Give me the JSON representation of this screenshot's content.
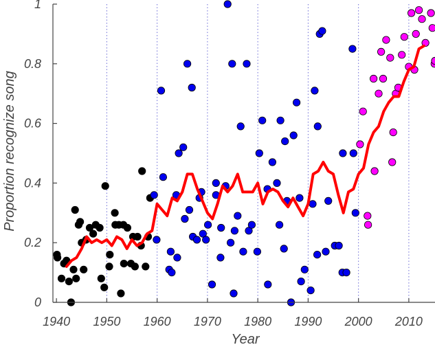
{
  "chart_data": {
    "type": "scatter",
    "title": "",
    "xlabel": "Year",
    "ylabel": "Proportion recognize song",
    "xlim": [
      1939.3,
      2015.2
    ],
    "ylim": [
      0,
      1
    ],
    "xticks": [
      "1940",
      "1950",
      "1960",
      "1970",
      "1980",
      "1990",
      "2000",
      "2010"
    ],
    "yticks": [
      "0",
      "0.2",
      "0.4",
      "0.6",
      "0.8",
      "1"
    ],
    "vertical_gridlines": [
      1950,
      1960,
      1970,
      1980,
      1990,
      2000,
      2010
    ],
    "colors": {
      "series_1940s_pre1960": "#000000",
      "series_1960_1999": "#0000ee",
      "series_2000_plus": "#ff00ff",
      "trend_line": "#ff0000",
      "gridline": "#6b6bd6",
      "axis": "#444444"
    },
    "series": [
      {
        "color_key": "series_1940s_pre1960",
        "points": [
          [
            1940.1,
            0.16
          ],
          [
            1940.2,
            0.15
          ],
          [
            1941.0,
            0.08
          ],
          [
            1941.5,
            0.13
          ],
          [
            1942.0,
            0.14
          ],
          [
            1942.5,
            0.07
          ],
          [
            1942.9,
            0.0
          ],
          [
            1943.4,
            0.11
          ],
          [
            1943.7,
            0.31
          ],
          [
            1943.9,
            0.08
          ],
          [
            1944.4,
            0.26
          ],
          [
            1944.7,
            0.27
          ],
          [
            1945.0,
            0.2
          ],
          [
            1945.4,
            0.11
          ],
          [
            1945.9,
            0.21
          ],
          [
            1946.6,
            0.25
          ],
          [
            1947.3,
            0.23
          ],
          [
            1947.8,
            0.26
          ],
          [
            1948.6,
            0.25
          ],
          [
            1948.9,
            0.08
          ],
          [
            1949.5,
            0.05
          ],
          [
            1949.7,
            0.39
          ],
          [
            1950.5,
            0.12
          ],
          [
            1950.6,
            0.16
          ],
          [
            1951.6,
            0.3
          ],
          [
            1951.7,
            0.26
          ],
          [
            1952.4,
            0.26
          ],
          [
            1952.8,
            0.03
          ],
          [
            1953.3,
            0.26
          ],
          [
            1953.4,
            0.13
          ],
          [
            1954.1,
            0.25
          ],
          [
            1954.8,
            0.13
          ],
          [
            1955.2,
            0.22
          ],
          [
            1955.6,
            0.12
          ],
          [
            1956.1,
            0.22
          ],
          [
            1956.8,
            0.19
          ],
          [
            1957.0,
            0.44
          ],
          [
            1957.7,
            0.12
          ],
          [
            1958.2,
            0.22
          ],
          [
            1958.6,
            0.35
          ]
        ]
      },
      {
        "color_key": "series_1960_1999",
        "points": [
          [
            1959.4,
            0.36
          ],
          [
            1959.9,
            0.21
          ],
          [
            1960.8,
            0.71
          ],
          [
            1961.2,
            0.42
          ],
          [
            1962.4,
            0.11
          ],
          [
            1962.7,
            0.17
          ],
          [
            1962.9,
            0.1
          ],
          [
            1963.8,
            0.36
          ],
          [
            1964.0,
            0.15
          ],
          [
            1964.3,
            0.5
          ],
          [
            1965.2,
            0.52
          ],
          [
            1965.5,
            0.28
          ],
          [
            1966.0,
            0.8
          ],
          [
            1966.4,
            0.31
          ],
          [
            1966.9,
            0.72
          ],
          [
            1967.1,
            0.22
          ],
          [
            1967.9,
            0.21
          ],
          [
            1968.4,
            0.35
          ],
          [
            1968.8,
            0.37
          ],
          [
            1969.1,
            0.23
          ],
          [
            1969.7,
            0.21
          ],
          [
            1970.1,
            0.26
          ],
          [
            1970.9,
            0.06
          ],
          [
            1971.7,
            0.36
          ],
          [
            1971.7,
            0.4
          ],
          [
            1972.7,
            0.25
          ],
          [
            1972.6,
            0.15
          ],
          [
            1973.6,
            0.39
          ],
          [
            1974.0,
            1.0
          ],
          [
            1974.6,
            0.2
          ],
          [
            1974.9,
            0.8
          ],
          [
            1975.2,
            0.03
          ],
          [
            1975.4,
            0.24
          ],
          [
            1976.0,
            0.29
          ],
          [
            1976.6,
            0.59
          ],
          [
            1977.1,
            0.17
          ],
          [
            1977.8,
            0.8
          ],
          [
            1978.2,
            0.24
          ],
          [
            1978.8,
            0.26
          ],
          [
            1979.9,
            0.17
          ],
          [
            1980.3,
            0.5
          ],
          [
            1980.9,
            0.61
          ],
          [
            1981.9,
            0.38
          ],
          [
            1982.0,
            0.06
          ],
          [
            1982.9,
            0.47
          ],
          [
            1983.8,
            0.4
          ],
          [
            1984.3,
            0.26
          ],
          [
            1984.5,
            0.61
          ],
          [
            1985.2,
            0.18
          ],
          [
            1985.4,
            0.54
          ],
          [
            1985.8,
            0.34
          ],
          [
            1986.6,
            0.0
          ],
          [
            1987.1,
            0.56
          ],
          [
            1987.7,
            0.67
          ],
          [
            1988.3,
            0.35
          ],
          [
            1988.6,
            0.07
          ],
          [
            1989.3,
            0.11
          ],
          [
            1990.5,
            0.04
          ],
          [
            1990.9,
            0.33
          ],
          [
            1991.3,
            0.71
          ],
          [
            1991.8,
            0.16
          ],
          [
            1991.9,
            0.59
          ],
          [
            1992.3,
            0.9
          ],
          [
            1992.8,
            0.91
          ],
          [
            1993.5,
            0.17
          ],
          [
            1994.0,
            0.34
          ],
          [
            1995.3,
            0.19
          ],
          [
            1996.1,
            0.19
          ],
          [
            1996.8,
            0.1
          ],
          [
            1996.9,
            0.5
          ],
          [
            1997.6,
            0.1
          ],
          [
            1998.8,
            0.85
          ],
          [
            1999.0,
            0.5
          ],
          [
            1999.4,
            0.3
          ]
        ]
      },
      {
        "color_key": "series_2000_plus",
        "points": [
          [
            2000.3,
            0.53
          ],
          [
            2000.9,
            0.64
          ],
          [
            2001.8,
            0.29
          ],
          [
            2001.9,
            0.26
          ],
          [
            2003.0,
            0.75
          ],
          [
            2003.2,
            0.44
          ],
          [
            2004.0,
            0.7
          ],
          [
            2004.5,
            0.84
          ],
          [
            2004.9,
            0.75
          ],
          [
            2005.5,
            0.88
          ],
          [
            2006.3,
            0.82
          ],
          [
            2006.7,
            0.47
          ],
          [
            2006.9,
            0.57
          ],
          [
            2007.4,
            0.7
          ],
          [
            2007.9,
            0.72
          ],
          [
            2008.6,
            0.83
          ],
          [
            2009.1,
            0.89
          ],
          [
            2010.0,
            0.79
          ],
          [
            2010.5,
            0.97
          ],
          [
            2011.1,
            0.78
          ],
          [
            2011.4,
            0.9
          ],
          [
            2012.0,
            0.98
          ],
          [
            2012.6,
            0.95
          ],
          [
            2013.3,
            0.87
          ],
          [
            2014.4,
            0.97
          ],
          [
            2014.7,
            0.92
          ],
          [
            2015.1,
            0.8
          ],
          [
            2015.2,
            0.81
          ]
        ]
      }
    ],
    "trend": [
      [
        1942,
        0.12
      ],
      [
        1943,
        0.14
      ],
      [
        1944,
        0.15
      ],
      [
        1945,
        0.18
      ],
      [
        1946,
        0.22
      ],
      [
        1947,
        0.2
      ],
      [
        1948,
        0.21
      ],
      [
        1949,
        0.2
      ],
      [
        1950,
        0.21
      ],
      [
        1951,
        0.19
      ],
      [
        1952,
        0.22
      ],
      [
        1953,
        0.21
      ],
      [
        1954,
        0.18
      ],
      [
        1955,
        0.21
      ],
      [
        1956,
        0.19
      ],
      [
        1957,
        0.2
      ],
      [
        1958,
        0.23
      ],
      [
        1959,
        0.24
      ],
      [
        1960,
        0.33
      ],
      [
        1961,
        0.31
      ],
      [
        1962,
        0.29
      ],
      [
        1963,
        0.35
      ],
      [
        1964,
        0.34
      ],
      [
        1965,
        0.37
      ],
      [
        1966,
        0.43
      ],
      [
        1967,
        0.43
      ],
      [
        1968,
        0.38
      ],
      [
        1969,
        0.34
      ],
      [
        1970,
        0.3
      ],
      [
        1971,
        0.28
      ],
      [
        1972,
        0.33
      ],
      [
        1973,
        0.39
      ],
      [
        1974,
        0.37
      ],
      [
        1975,
        0.39
      ],
      [
        1976,
        0.43
      ],
      [
        1977,
        0.37
      ],
      [
        1978,
        0.37
      ],
      [
        1979,
        0.37
      ],
      [
        1980,
        0.4
      ],
      [
        1981,
        0.33
      ],
      [
        1982,
        0.37
      ],
      [
        1983,
        0.38
      ],
      [
        1984,
        0.37
      ],
      [
        1985,
        0.34
      ],
      [
        1986,
        0.32
      ],
      [
        1987,
        0.35
      ],
      [
        1988,
        0.32
      ],
      [
        1989,
        0.29
      ],
      [
        1990,
        0.33
      ],
      [
        1991,
        0.43
      ],
      [
        1992,
        0.44
      ],
      [
        1993,
        0.47
      ],
      [
        1994,
        0.44
      ],
      [
        1995,
        0.43
      ],
      [
        1996,
        0.36
      ],
      [
        1997,
        0.3
      ],
      [
        1998,
        0.37
      ],
      [
        1999,
        0.38
      ],
      [
        2000,
        0.43
      ],
      [
        2001,
        0.45
      ],
      [
        2002,
        0.53
      ],
      [
        2003,
        0.57
      ],
      [
        2004,
        0.59
      ],
      [
        2005,
        0.64
      ],
      [
        2006,
        0.67
      ],
      [
        2007,
        0.69
      ],
      [
        2008,
        0.69
      ],
      [
        2009,
        0.74
      ],
      [
        2010,
        0.78
      ],
      [
        2011,
        0.79
      ],
      [
        2012,
        0.85
      ],
      [
        2013,
        0.86
      ]
    ]
  }
}
